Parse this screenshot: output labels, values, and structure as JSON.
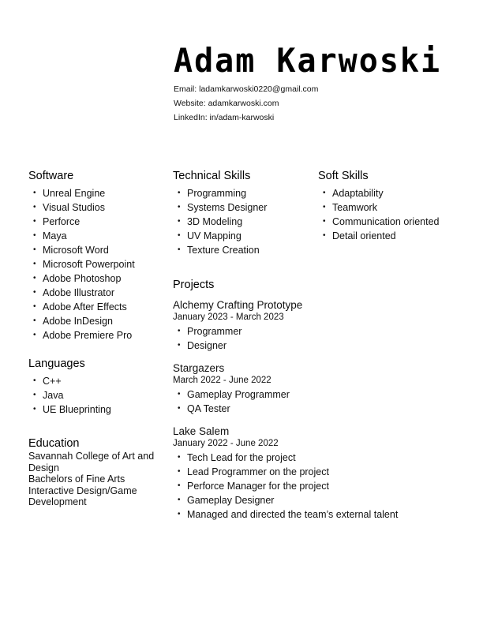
{
  "header": {
    "name": "Adam Karwoski",
    "email": "Email: ladamkarwoski0220@gmail.com",
    "website": "Website: adamkarwoski.com",
    "linkedin": "LinkedIn: in/adam-karwoski"
  },
  "software": {
    "heading": "Software",
    "items": [
      "Unreal Engine",
      "Visual Studios",
      "Perforce",
      "Maya",
      "Microsoft Word",
      "Microsoft Powerpoint",
      "Adobe Photoshop",
      "Adobe Illustrator",
      "Adobe After Effects",
      "Adobe InDesign",
      "Adobe Premiere Pro"
    ]
  },
  "languages": {
    "heading": "Languages",
    "items": [
      "C++",
      "Java",
      "UE Blueprinting"
    ]
  },
  "education": {
    "heading": "Education",
    "lines": [
      "Savannah College of Art and",
      "Design",
      "Bachelors of Fine Arts",
      "Interactive Design/Game",
      "Development"
    ]
  },
  "technical": {
    "heading": "Technical Skills",
    "items": [
      "Programming",
      "Systems Designer",
      "3D Modeling",
      "UV Mapping",
      "Texture Creation"
    ]
  },
  "soft": {
    "heading": "Soft Skills",
    "items": [
      "Adaptability",
      "Teamwork",
      "Communication oriented",
      "Detail oriented"
    ]
  },
  "projects": {
    "heading": "Projects",
    "list": [
      {
        "title": "Alchemy Crafting Prototype",
        "dates": "January 2023 - March 2023",
        "items": [
          "Programmer",
          "Designer"
        ]
      },
      {
        "title": "Stargazers",
        "dates": "March 2022 - June 2022",
        "items": [
          "Gameplay Programmer",
          "QA Tester"
        ]
      },
      {
        "title": "Lake Salem",
        "dates": "January 2022 - June 2022",
        "items": [
          "Tech Lead for the project",
          "Lead Programmer on the project",
          "Perforce Manager for the project",
          "Gameplay Designer",
          "Managed and directed the team’s external talent"
        ]
      }
    ]
  }
}
